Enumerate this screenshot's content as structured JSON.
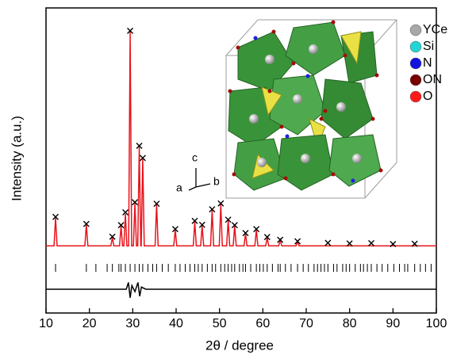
{
  "chart_data": {
    "type": "line",
    "xlabel": "2θ / degree",
    "ylabel": "Intensity (a.u.)",
    "xlim": [
      10,
      100
    ],
    "ylim": [
      0,
      100
    ],
    "xticks": [
      10,
      20,
      30,
      40,
      50,
      60,
      70,
      80,
      90,
      100
    ],
    "series": [
      {
        "mode": "line",
        "color": "#e8141c",
        "x": [
          10,
          11.85,
          12.2,
          12.55,
          18.95,
          19.3,
          19.65,
          24.95,
          25.3,
          25.65,
          26.95,
          27.3,
          27.65,
          27.95,
          28.3,
          28.65,
          29.05,
          29.4,
          29.75,
          30.15,
          30.5,
          30.85,
          31.15,
          31.5,
          31.85,
          31.95,
          32.3,
          32.65,
          35.15,
          35.5,
          35.85,
          39.45,
          39.8,
          40.15,
          43.95,
          44.3,
          44.65,
          45.65,
          46,
          46.35,
          47.95,
          48.3,
          48.65,
          49.95,
          50.3,
          50.65,
          51.65,
          52,
          52.35,
          53.15,
          53.5,
          53.85,
          55.65,
          56,
          56.35,
          58.15,
          58.5,
          58.85,
          60.65,
          61,
          61.35,
          63.65,
          64,
          64.35,
          67.65,
          68,
          68.35,
          100
        ],
        "values": [
          22,
          22,
          31.2,
          22,
          22,
          29,
          22,
          22,
          24.7,
          22,
          22,
          28.6,
          22,
          22,
          32.5,
          22,
          22,
          92.2,
          22,
          22,
          36,
          22,
          22,
          54.5,
          22,
          22,
          50.6,
          22,
          22,
          35.6,
          22,
          22,
          27.3,
          22,
          22,
          29.9,
          22,
          22,
          28.6,
          22,
          22,
          33.8,
          22,
          22,
          35.6,
          22,
          22,
          30.4,
          22,
          22,
          28.6,
          22,
          22,
          26,
          22,
          22,
          27.3,
          22,
          22,
          24.7,
          22,
          22,
          23.9,
          22,
          22,
          23.4,
          22,
          22
        ]
      },
      {
        "mode": "markers",
        "color": "#000000",
        "x": [
          12.2,
          19.3,
          25.3,
          27.3,
          28.3,
          29.4,
          30.5,
          31.5,
          32.3,
          35.5,
          39.8,
          44.3,
          46,
          48.3,
          50.3,
          52,
          53.5,
          56,
          58.5,
          61,
          64,
          68,
          75,
          80,
          85,
          90,
          95
        ],
        "values": [
          31.5,
          29.2,
          25,
          28.8,
          33,
          92.5,
          36.3,
          54.8,
          50.8,
          35.8,
          27.5,
          30.2,
          28.9,
          34,
          35.9,
          30.6,
          28.8,
          26.2,
          27.5,
          24.9,
          24,
          23.5,
          23,
          22.8,
          22.9,
          22.6,
          22.7
        ]
      },
      {
        "mode": "line",
        "color": "#000000",
        "x": [
          10,
          28.5,
          29,
          29.4,
          29.8,
          30.5,
          31.2,
          31.6,
          32,
          33,
          100
        ],
        "values": [
          7.8,
          7.8,
          10,
          5,
          9,
          7,
          10,
          5.5,
          8.5,
          7.8,
          7.8
        ]
      }
    ],
    "bragg_positions": [
      12.2,
      19.3,
      21.5,
      24.1,
      25.3,
      26.8,
      27.3,
      28.3,
      29.4,
      30.5,
      31.5,
      32.3,
      33.5,
      34.6,
      35.5,
      36.8,
      38.2,
      39.8,
      40.9,
      42.1,
      43.2,
      44.3,
      45.1,
      46,
      47.2,
      48.3,
      49.1,
      50.3,
      51.2,
      52,
      52.8,
      53.5,
      54.6,
      55.4,
      56,
      57.2,
      58.5,
      59.3,
      60.1,
      61,
      62.2,
      63.5,
      64,
      65.2,
      66.5,
      68,
      69.3,
      70.5,
      71.8,
      72.6,
      73.4,
      74.2,
      75,
      76.3,
      77.1,
      78.4,
      79.2,
      80,
      81.3,
      82.5,
      83.2,
      84.1,
      85,
      86.3,
      87.5,
      88.8,
      90.2,
      91.5,
      92.7,
      93.4,
      95,
      96.3,
      97.5,
      98.8
    ],
    "axes_labels": [
      "c",
      "a",
      "b"
    ],
    "structure_legend": [
      {
        "label": "YCe",
        "color": "#a8a8a8"
      },
      {
        "label": "Si",
        "color": "#22d6d6"
      },
      {
        "label": "N",
        "color": "#1212e0"
      },
      {
        "label": "ON",
        "color": "#7a0000"
      },
      {
        "label": "O",
        "color": "#ff1a1a"
      }
    ]
  }
}
